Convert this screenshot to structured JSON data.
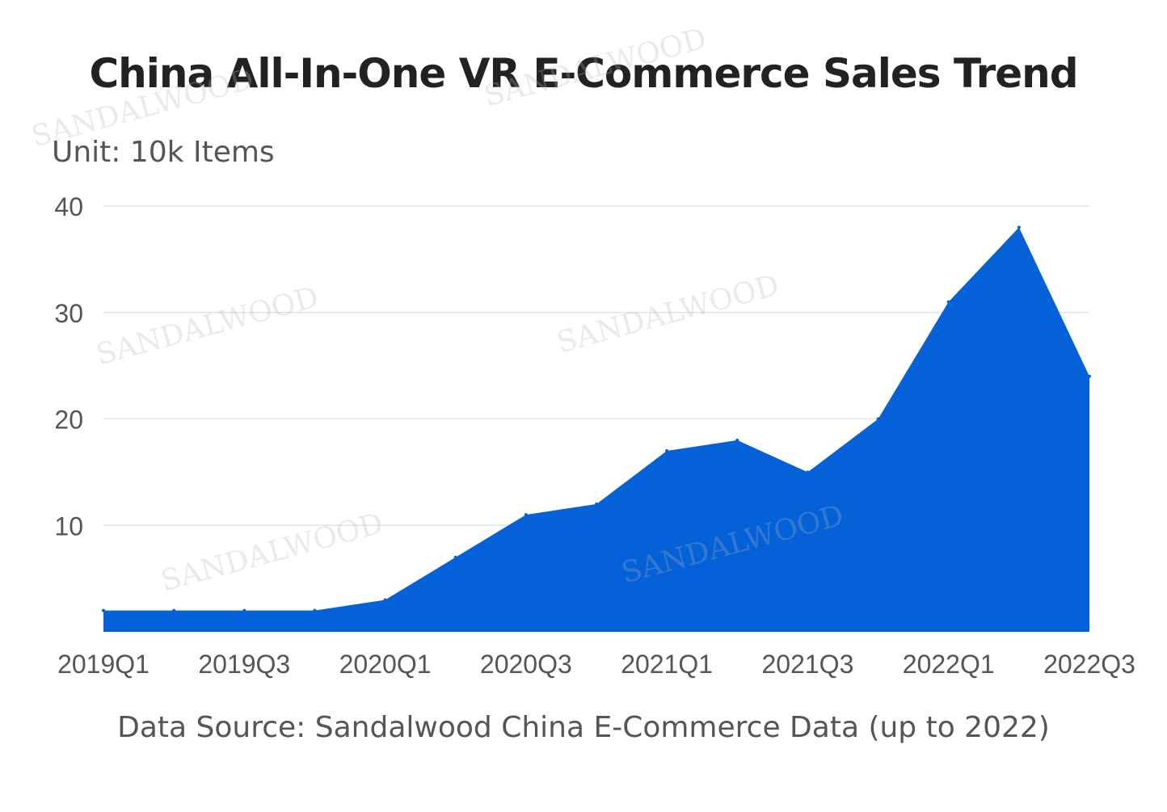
{
  "chart_data": {
    "type": "area",
    "title": "China All-In-One VR E-Commerce Sales Trend",
    "unit_label": "Unit: 10k Items",
    "source": "Data Source: Sandalwood China E-Commerce Data (up to 2022)",
    "categories": [
      "2019Q1",
      "2019Q2",
      "2019Q3",
      "2019Q4",
      "2020Q1",
      "2020Q2",
      "2020Q3",
      "2020Q4",
      "2021Q1",
      "2021Q2",
      "2021Q3",
      "2021Q4",
      "2022Q1",
      "2022Q2",
      "2022Q3"
    ],
    "x_tick_labels": [
      "2019Q1",
      "2019Q3",
      "2020Q1",
      "2020Q3",
      "2021Q1",
      "2021Q3",
      "2022Q1",
      "2022Q3"
    ],
    "values": [
      2.0,
      2.0,
      2.0,
      2.0,
      3.0,
      7.0,
      11.0,
      12.0,
      17.0,
      18.0,
      15.0,
      20.0,
      31.0,
      38.0,
      24.0
    ],
    "y_ticks": [
      10,
      20,
      30,
      40
    ],
    "ylim": [
      0,
      40
    ],
    "grid": true,
    "legend": "none",
    "color": "#0561d8"
  },
  "watermark_text": "SANDALWOOD"
}
